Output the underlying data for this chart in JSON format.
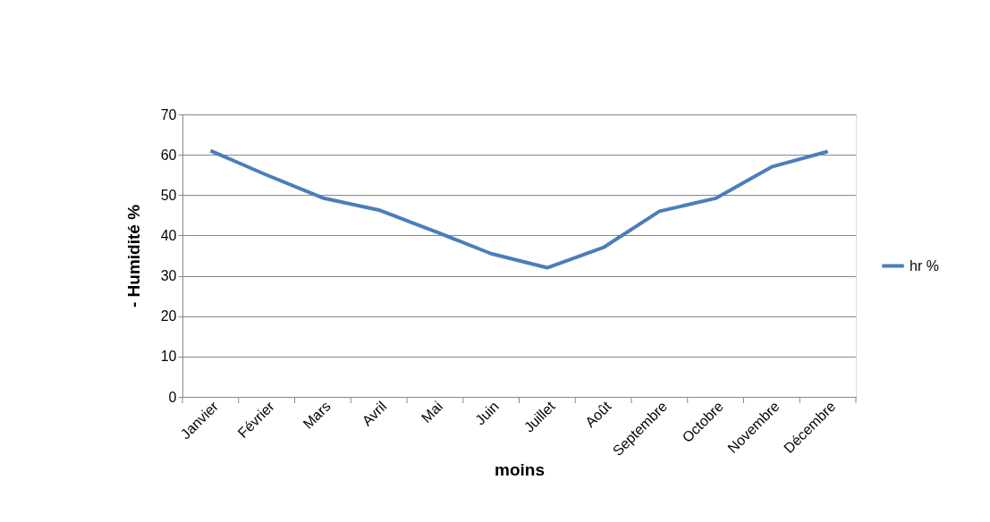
{
  "chart_data": {
    "type": "line",
    "xlabel": "moins",
    "ylabel": "- Humidité %",
    "categories": [
      "Janvier",
      "Février",
      "Mars",
      "Avril",
      "Mai",
      "Juin",
      "Juillet",
      "Août",
      "Septembre",
      "Octobre",
      "Novembre",
      "Décembre"
    ],
    "series": [
      {
        "name": "hr %",
        "color": "#4a7ebb",
        "values": [
          61,
          55,
          49.3,
          46.3,
          41,
          35.5,
          32,
          37,
          46,
          49.2,
          57,
          60.8
        ]
      }
    ],
    "ylim": [
      0,
      70
    ],
    "yticks": [
      0,
      10,
      20,
      30,
      40,
      50,
      60,
      70
    ],
    "grid": "y",
    "legend": "right",
    "marker": "none",
    "line_style": "solid"
  }
}
